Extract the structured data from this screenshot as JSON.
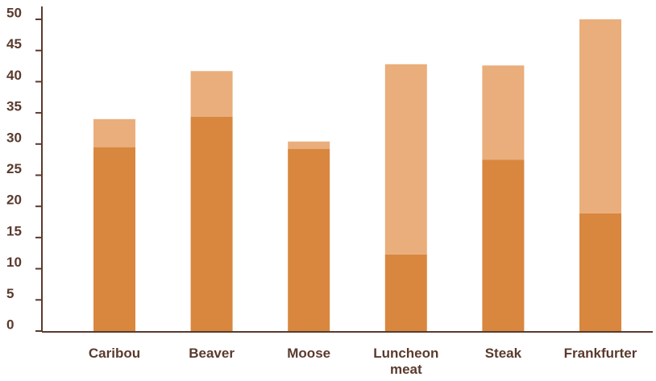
{
  "chart_data": {
    "type": "stacked_bar",
    "categories": [
      "Caribou",
      "Beaver",
      "Moose",
      "Luncheon meat",
      "Steak",
      "Frankfurter"
    ],
    "series": [
      {
        "color": "#d9873f",
        "values": [
          29.5,
          34.4,
          29.2,
          12.3,
          27.5,
          18.9
        ]
      },
      {
        "color": "#e9ae7b",
        "values": [
          4.5,
          7.3,
          1.2,
          30.5,
          15.1,
          31.1
        ]
      }
    ],
    "ylim": [
      0,
      50
    ],
    "yticks": [
      0,
      5,
      10,
      15,
      20,
      25,
      30,
      35,
      40,
      45,
      50
    ]
  }
}
